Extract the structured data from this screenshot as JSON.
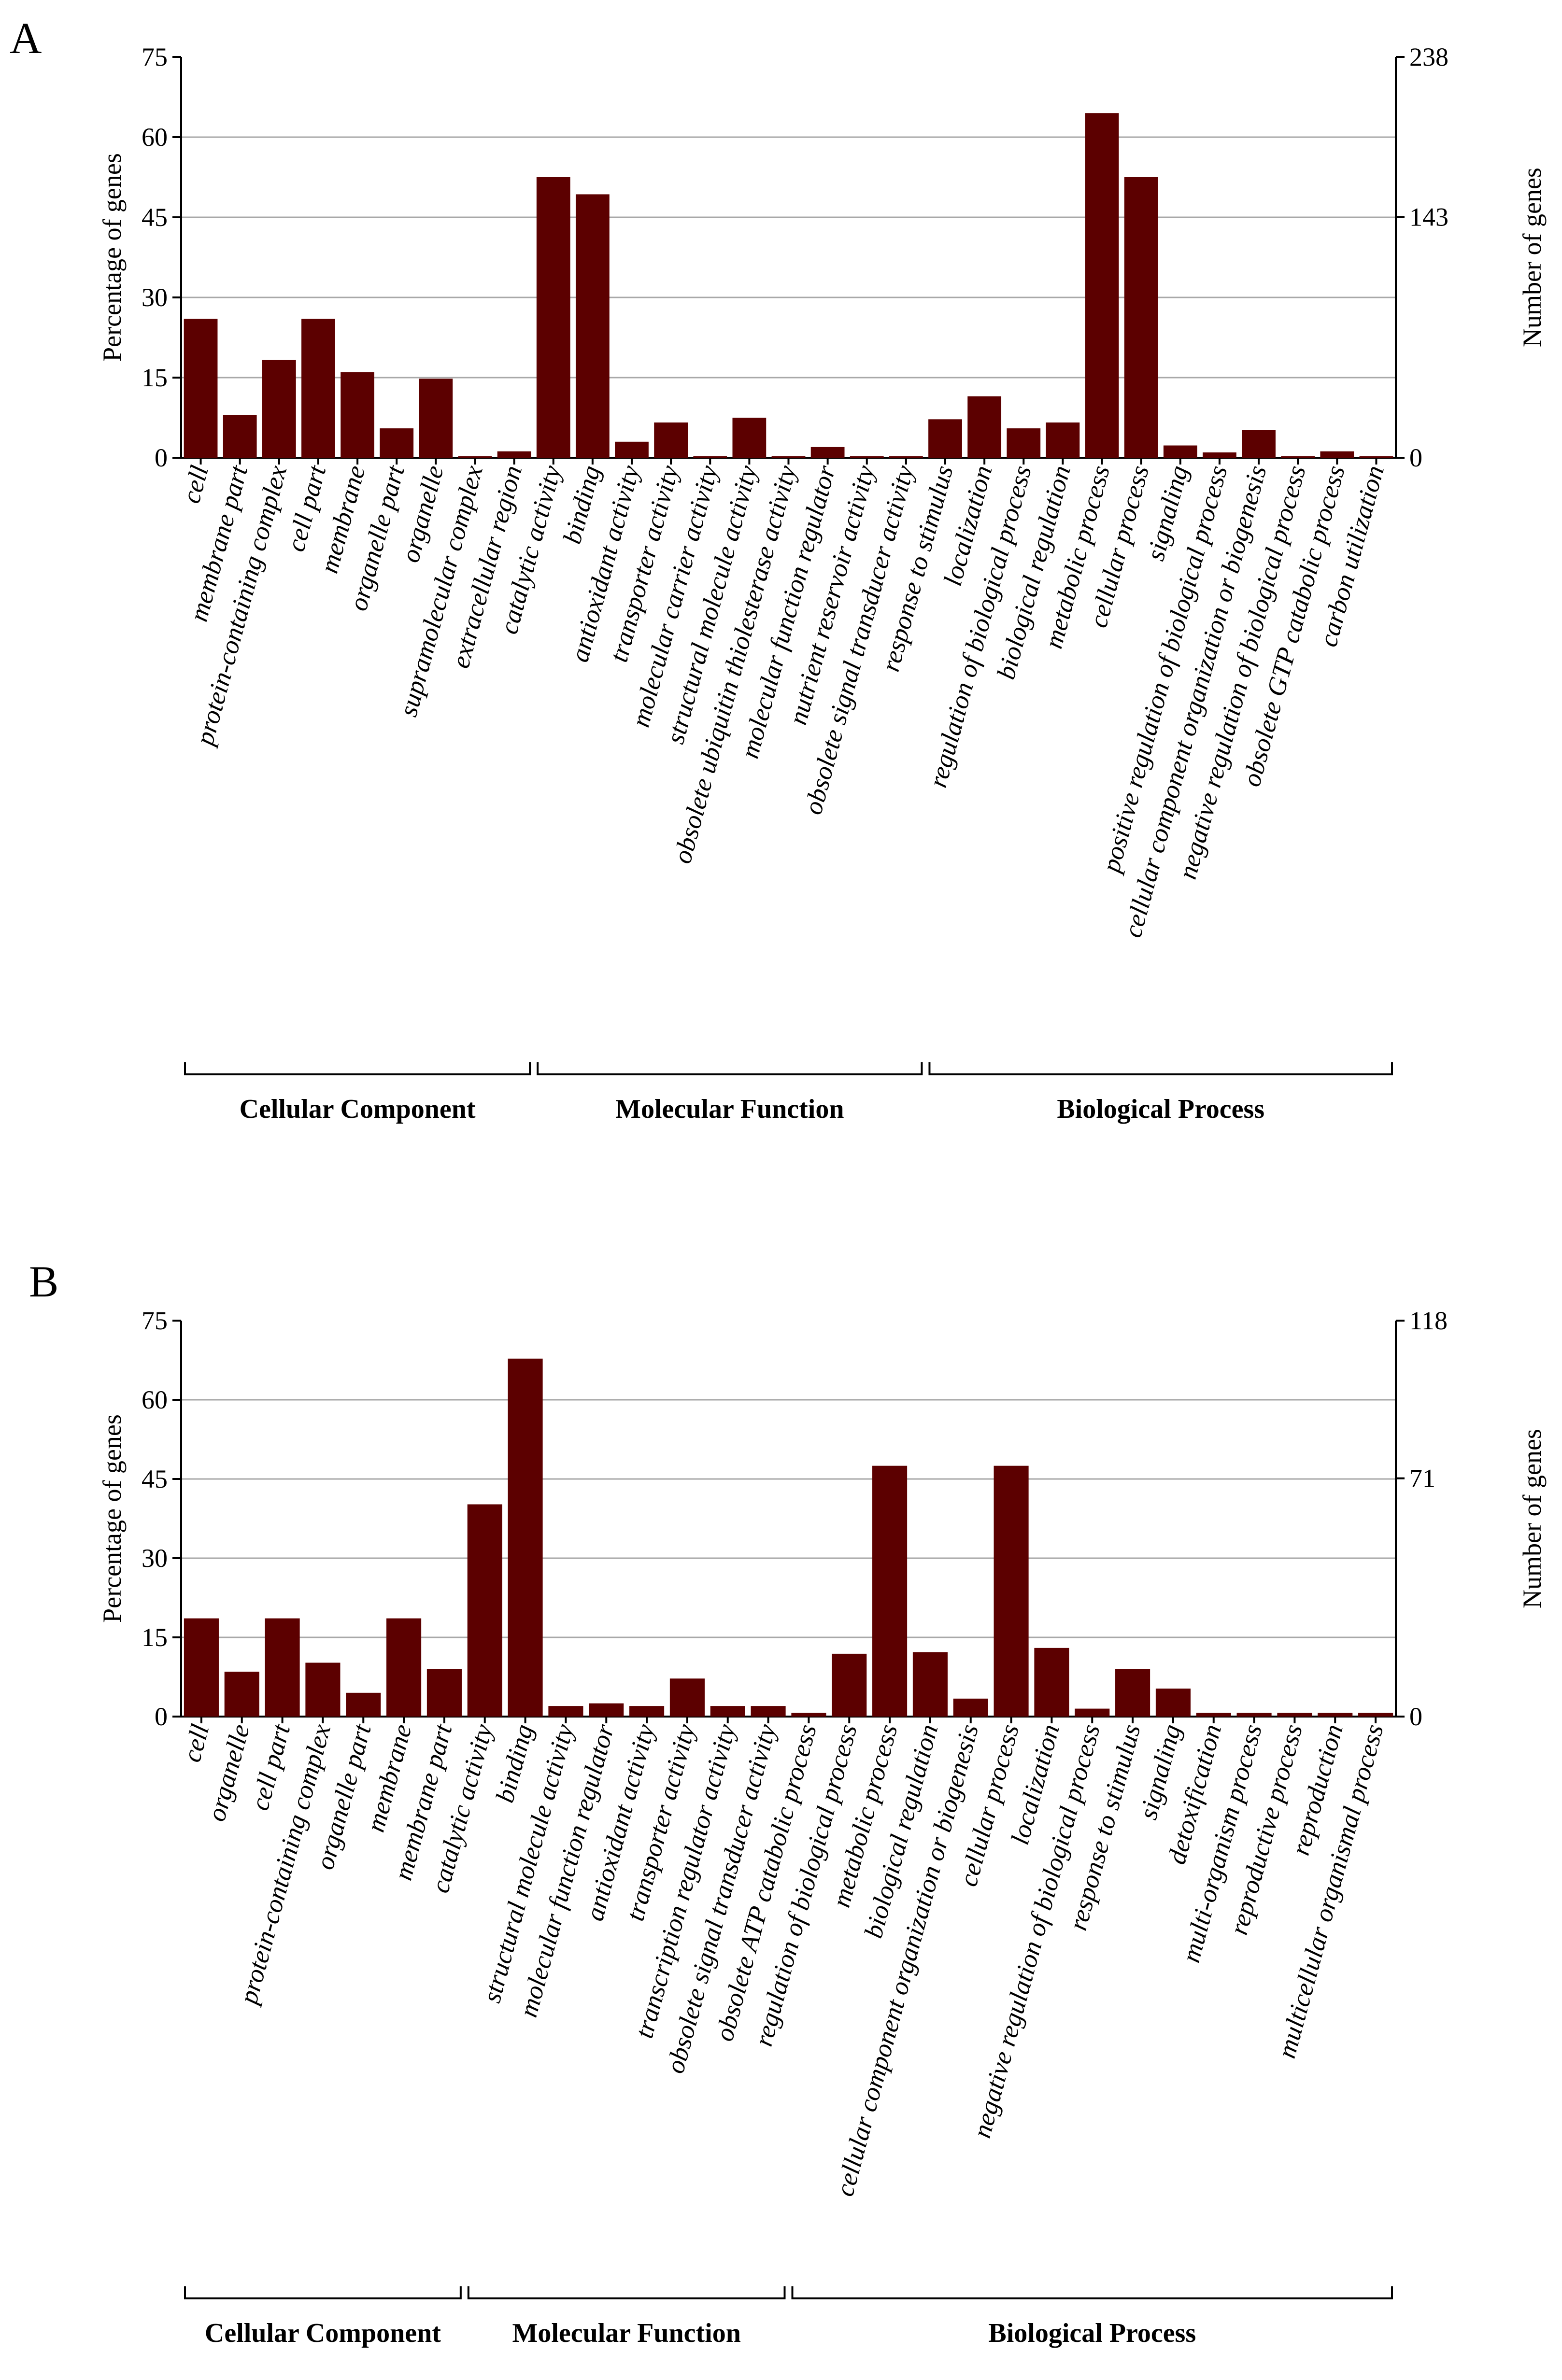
{
  "chart_data": [
    {
      "type": "bar",
      "panel": "A",
      "ylabel_left": "Percentage of genes",
      "ylabel_right": "Number of genes",
      "left_ticks": [
        "0",
        "15",
        "30",
        "45",
        "60",
        "75"
      ],
      "right_ticks": [
        "0",
        "143",
        "238"
      ],
      "ylim": [
        0,
        75
      ],
      "right_ylim": [
        0,
        238
      ],
      "categories": [
        "cell",
        "membrane part",
        "protein-containing complex",
        "cell part",
        "membrane",
        "organelle part",
        "organelle",
        "supramolecular complex",
        "extracellular region",
        "catalytic activity",
        "binding",
        "antioxidant activity",
        "transporter activity",
        "molecular carrier activity",
        "structural molecule activity",
        "obsolete ubiquitin thiolesterase activity",
        "molecular function regulator",
        "nutrient reservoir activity",
        "obsolete signal transducer activity",
        "response to stimulus",
        "localization",
        "regulation of biological process",
        "biological regulation",
        "metabolic process",
        "cellular process",
        "signaling",
        "positive regulation of biological process",
        "cellular component organization or biogenesis",
        "negative regulation of biological process",
        "obsolete GTP catabolic process",
        "carbon utilization"
      ],
      "values": [
        26,
        8,
        18.3,
        26,
        16,
        5.5,
        14.8,
        0.3,
        1.2,
        52.5,
        49.3,
        3,
        6.6,
        0.3,
        7.5,
        0.3,
        2,
        0.3,
        0.3,
        7.2,
        11.5,
        5.5,
        6.6,
        64.5,
        52.5,
        2.3,
        1,
        5.2,
        0.3,
        1.2,
        0.3
      ],
      "groups": [
        {
          "name": "Cellular Component",
          "start": 0,
          "end": 8
        },
        {
          "name": "Molecular Function",
          "start": 9,
          "end": 18
        },
        {
          "name": "Biological Process",
          "start": 19,
          "end": 30
        }
      ]
    },
    {
      "type": "bar",
      "panel": "B",
      "ylabel_left": "Percentage of genes",
      "ylabel_right": "Number of genes",
      "left_ticks": [
        "0",
        "15",
        "30",
        "45",
        "60",
        "75"
      ],
      "right_ticks": [
        "0",
        "71",
        "118"
      ],
      "ylim": [
        0,
        75
      ],
      "right_ylim": [
        0,
        118
      ],
      "categories": [
        "cell",
        "organelle",
        "cell part",
        "protein-containing complex",
        "organelle part",
        "membrane",
        "membrane part",
        "catalytic activity",
        "binding",
        "structural molecule activity",
        "molecular function regulator",
        "antioxidant activity",
        "transporter activity",
        "transcription regulator activity",
        "obsolete signal transducer activity",
        "obsolete ATP catabolic process",
        "regulation of biological process",
        "metabolic process",
        "biological regulation",
        "cellular component organization or biogenesis",
        "cellular process",
        "localization",
        "negative regulation of biological process",
        "response to stimulus",
        "signaling",
        "detoxification",
        "multi-organism process",
        "reproductive process",
        "reproduction",
        "multicellular organismal process"
      ],
      "values": [
        18.6,
        8.5,
        18.6,
        10.2,
        4.5,
        18.6,
        9,
        40.2,
        67.8,
        2,
        2.5,
        2,
        7.2,
        2,
        2,
        0.7,
        11.9,
        47.5,
        12.2,
        3.4,
        47.5,
        13,
        1.5,
        9,
        5.3,
        0.7,
        0.7,
        0.7,
        0.7,
        0.7
      ],
      "groups": [
        {
          "name": "Cellular Component",
          "start": 0,
          "end": 6
        },
        {
          "name": "Molecular Function",
          "start": 7,
          "end": 14
        },
        {
          "name": "Biological Process",
          "start": 15,
          "end": 29
        }
      ]
    }
  ]
}
